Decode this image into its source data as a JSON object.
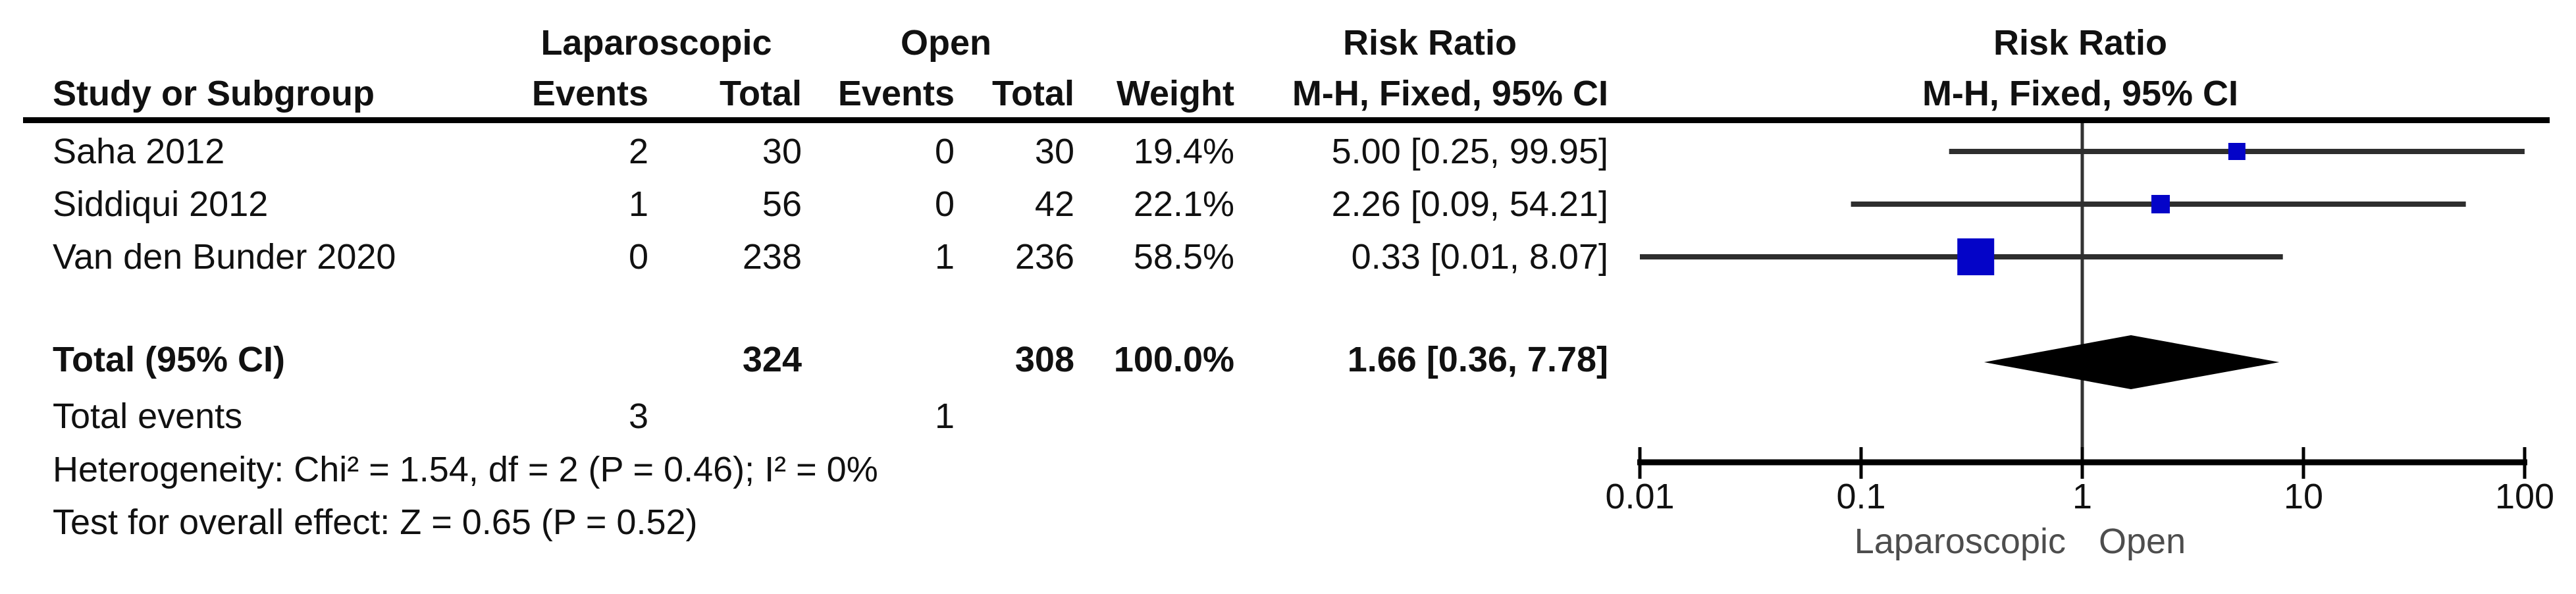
{
  "table": {
    "group1_label": "Laparoscopic",
    "group2_label": "Open",
    "effect_header_line1": "Risk Ratio",
    "effect_header_line2": "M-H, Fixed, 95% CI",
    "plot_header_line1": "Risk Ratio",
    "plot_header_line2": "M-H, Fixed, 95% CI",
    "col_study": "Study or Subgroup",
    "col_events": "Events",
    "col_total": "Total",
    "col_weight": "Weight",
    "rows": [
      {
        "study": "Saha 2012",
        "events1": "2",
        "total1": "30",
        "events2": "0",
        "total2": "30",
        "weight": "19.4%",
        "rr_text": "5.00 [0.25, 99.95]"
      },
      {
        "study": "Siddiqui 2012",
        "events1": "1",
        "total1": "56",
        "events2": "0",
        "total2": "42",
        "weight": "22.1%",
        "rr_text": "2.26 [0.09, 54.21]"
      },
      {
        "study": "Van den Bunder 2020",
        "events1": "0",
        "total1": "238",
        "events2": "1",
        "total2": "236",
        "weight": "58.5%",
        "rr_text": "0.33 [0.01, 8.07]"
      }
    ],
    "total_row": {
      "label": "Total (95% CI)",
      "total1": "324",
      "total2": "308",
      "weight": "100.0%",
      "rr_text": "1.66 [0.36, 7.78]"
    },
    "total_events_row": {
      "label": "Total events",
      "events1": "3",
      "events2": "1"
    },
    "heterogeneity_text": "Heterogeneity: Chi² = 1.54, df = 2 (P = 0.46); I² = 0%",
    "overall_effect_text": "Test for overall effect: Z = 0.65 (P = 0.52)"
  },
  "chart_data": {
    "type": "forest",
    "x_scale": "log10",
    "xlim": [
      0.01,
      100
    ],
    "null_line": 1,
    "axis_ticks": [
      0.01,
      0.1,
      1,
      10,
      100
    ],
    "tick_labels": [
      "0.01",
      "0.1",
      "1",
      "10",
      "100"
    ],
    "studies": [
      {
        "name": "Saha 2012",
        "rr": 5.0,
        "ci_low": 0.25,
        "ci_high": 99.95,
        "weight_pct": 19.4
      },
      {
        "name": "Siddiqui 2012",
        "rr": 2.26,
        "ci_low": 0.09,
        "ci_high": 54.21,
        "weight_pct": 22.1
      },
      {
        "name": "Van den Bunder 2020",
        "rr": 0.33,
        "ci_low": 0.01,
        "ci_high": 8.07,
        "weight_pct": 58.5
      }
    ],
    "pooled": {
      "label": "Total (95% CI)",
      "rr": 1.66,
      "ci_low": 0.36,
      "ci_high": 7.78,
      "weight_pct": 100.0
    },
    "footer_left_label": "Laparoscopic",
    "footer_right_label": "Open",
    "colors": {
      "square": "#0404c8",
      "ci_line": "#2e2e2e",
      "diamond": "#000000",
      "axis": "#000000",
      "null_line": "#333333",
      "footer_label": "#4d4d4d",
      "text": "#111111"
    }
  }
}
